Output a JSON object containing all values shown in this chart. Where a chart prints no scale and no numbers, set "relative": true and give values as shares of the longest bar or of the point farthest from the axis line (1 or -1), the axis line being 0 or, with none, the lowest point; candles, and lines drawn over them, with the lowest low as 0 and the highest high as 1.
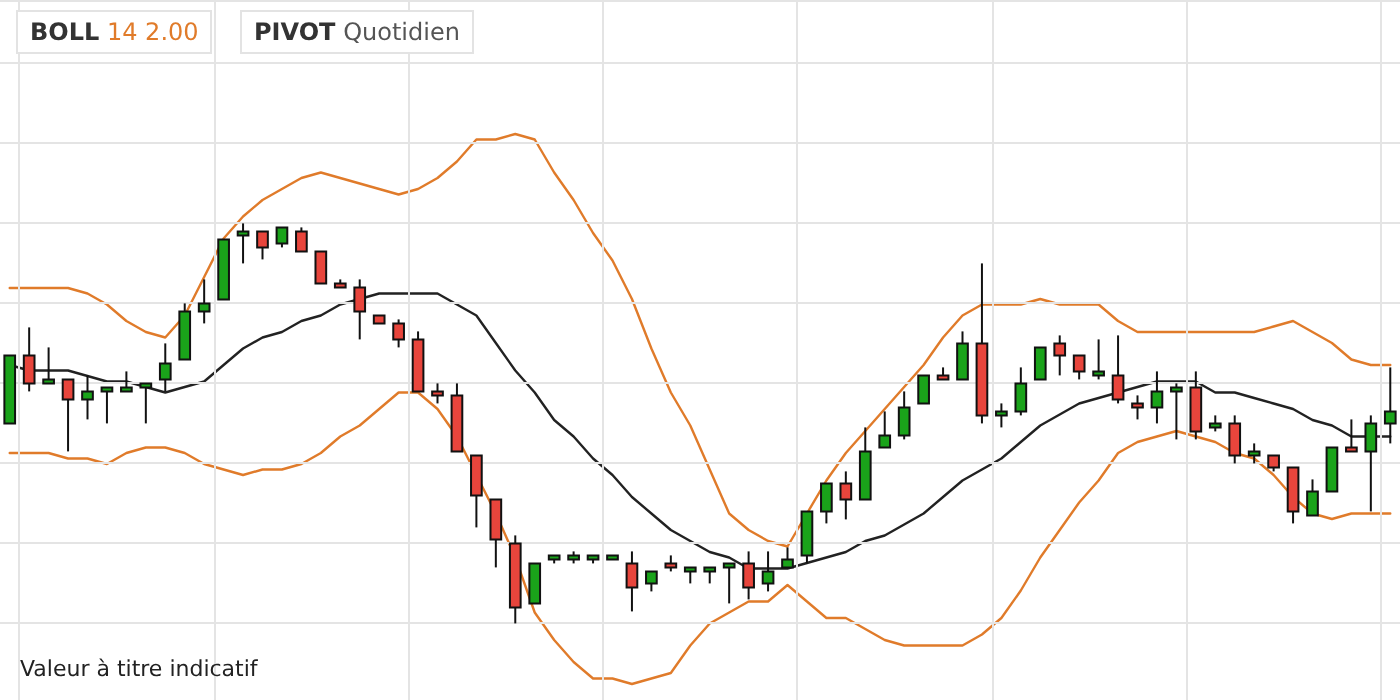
{
  "chart_data": [
    {
      "type": "candlestick",
      "relative": true,
      "grid": true,
      "categories": [
        null,
        null,
        null,
        null,
        null,
        null,
        null,
        null,
        null,
        null,
        null,
        null,
        null,
        null,
        null,
        null,
        null,
        null,
        null,
        null,
        null,
        null,
        null,
        null,
        null,
        null,
        null,
        null,
        null,
        null,
        null,
        null,
        null,
        null,
        null,
        null,
        null,
        null,
        null,
        null,
        null,
        null,
        null,
        null,
        null,
        null,
        null,
        null,
        null,
        null,
        null,
        null,
        null,
        null,
        null,
        null,
        null,
        null,
        null,
        null,
        null,
        null,
        null,
        null,
        null,
        null,
        null,
        null,
        null,
        null,
        null,
        null
      ],
      "ohlc": [
        [
          0.5,
          0.67,
          0.5,
          0.67
        ],
        [
          0.67,
          0.74,
          0.58,
          0.6
        ],
        [
          0.6,
          0.69,
          0.6,
          0.61
        ],
        [
          0.61,
          0.61,
          0.43,
          0.56
        ],
        [
          0.56,
          0.62,
          0.51,
          0.58
        ],
        [
          0.58,
          0.59,
          0.5,
          0.59
        ],
        [
          0.58,
          0.63,
          0.58,
          0.59
        ],
        [
          0.59,
          0.6,
          0.5,
          0.6
        ],
        [
          0.61,
          0.7,
          0.58,
          0.65
        ],
        [
          0.66,
          0.8,
          0.66,
          0.78
        ],
        [
          0.78,
          0.86,
          0.75,
          0.8
        ],
        [
          0.81,
          0.96,
          0.81,
          0.96
        ],
        [
          0.97,
          1.0,
          0.9,
          0.98
        ],
        [
          0.98,
          0.98,
          0.91,
          0.94
        ],
        [
          0.95,
          0.99,
          0.94,
          0.99
        ],
        [
          0.98,
          0.99,
          0.93,
          0.93
        ],
        [
          0.93,
          0.93,
          0.85,
          0.85
        ],
        [
          0.85,
          0.86,
          0.84,
          0.84
        ],
        [
          0.84,
          0.86,
          0.71,
          0.78
        ],
        [
          0.77,
          0.77,
          0.75,
          0.75
        ],
        [
          0.75,
          0.76,
          0.69,
          0.71
        ],
        [
          0.71,
          0.73,
          0.58,
          0.58
        ],
        [
          0.58,
          0.6,
          0.55,
          0.57
        ],
        [
          0.57,
          0.6,
          0.43,
          0.43
        ],
        [
          0.42,
          0.42,
          0.24,
          0.32
        ],
        [
          0.31,
          0.31,
          0.14,
          0.21
        ],
        [
          0.2,
          0.22,
          0.0,
          0.04
        ],
        [
          0.05,
          0.15,
          0.05,
          0.15
        ],
        [
          0.16,
          0.17,
          0.15,
          0.17
        ],
        [
          0.16,
          0.18,
          0.15,
          0.17
        ],
        [
          0.16,
          0.17,
          0.15,
          0.17
        ],
        [
          0.16,
          0.17,
          0.16,
          0.17
        ],
        [
          0.15,
          0.18,
          0.03,
          0.09
        ],
        [
          0.1,
          0.13,
          0.08,
          0.13
        ],
        [
          0.15,
          0.17,
          0.13,
          0.14
        ],
        [
          0.13,
          0.14,
          0.1,
          0.14
        ],
        [
          0.13,
          0.14,
          0.1,
          0.14
        ],
        [
          0.14,
          0.15,
          0.05,
          0.15
        ],
        [
          0.15,
          0.18,
          0.06,
          0.09
        ],
        [
          0.1,
          0.18,
          0.08,
          0.13
        ],
        [
          0.14,
          0.19,
          0.14,
          0.16
        ],
        [
          0.17,
          0.28,
          0.15,
          0.28
        ],
        [
          0.28,
          0.35,
          0.25,
          0.35
        ],
        [
          0.35,
          0.38,
          0.26,
          0.31
        ],
        [
          0.31,
          0.49,
          0.31,
          0.43
        ],
        [
          0.44,
          0.53,
          0.44,
          0.47
        ],
        [
          0.47,
          0.58,
          0.46,
          0.54
        ],
        [
          0.55,
          0.62,
          0.55,
          0.62
        ],
        [
          0.62,
          0.64,
          0.61,
          0.61
        ],
        [
          0.61,
          0.73,
          0.61,
          0.7
        ],
        [
          0.7,
          0.9,
          0.5,
          0.52
        ],
        [
          0.52,
          0.55,
          0.49,
          0.53
        ],
        [
          0.53,
          0.64,
          0.52,
          0.6
        ],
        [
          0.61,
          0.69,
          0.61,
          0.69
        ],
        [
          0.7,
          0.72,
          0.62,
          0.67
        ],
        [
          0.67,
          0.67,
          0.61,
          0.63
        ],
        [
          0.62,
          0.71,
          0.61,
          0.63
        ],
        [
          0.62,
          0.72,
          0.55,
          0.56
        ],
        [
          0.55,
          0.57,
          0.51,
          0.54
        ],
        [
          0.54,
          0.63,
          0.5,
          0.58
        ],
        [
          0.58,
          0.6,
          0.46,
          0.59
        ],
        [
          0.59,
          0.63,
          0.46,
          0.48
        ],
        [
          0.49,
          0.52,
          0.48,
          0.5
        ],
        [
          0.5,
          0.52,
          0.4,
          0.42
        ],
        [
          0.42,
          0.45,
          0.4,
          0.43
        ],
        [
          0.42,
          0.42,
          0.38,
          0.39
        ],
        [
          0.39,
          0.39,
          0.25,
          0.28
        ],
        [
          0.27,
          0.36,
          0.27,
          0.33
        ],
        [
          0.33,
          0.44,
          0.33,
          0.44
        ],
        [
          0.44,
          0.51,
          0.43,
          0.43
        ],
        [
          0.43,
          0.52,
          0.28,
          0.5
        ],
        [
          0.5,
          0.64,
          0.45,
          0.53
        ]
      ],
      "colors": [
        "#1aa31a",
        "#e8453c",
        "#1aa31a",
        "#e8453c",
        "#1aa31a",
        "#1aa31a",
        "#1aa31a",
        "#1aa31a",
        "#1aa31a",
        "#1aa31a",
        "#1aa31a",
        "#1aa31a",
        "#1aa31a",
        "#e8453c",
        "#1aa31a",
        "#e8453c",
        "#e8453c",
        "#e8453c",
        "#e8453c",
        "#e8453c",
        "#e8453c",
        "#e8453c",
        "#e8453c",
        "#e8453c",
        "#e8453c",
        "#e8453c",
        "#e8453c",
        "#1aa31a",
        "#1aa31a",
        "#1aa31a",
        "#1aa31a",
        "#1aa31a",
        "#e8453c",
        "#1aa31a",
        "#e8453c",
        "#1aa31a",
        "#1aa31a",
        "#1aa31a",
        "#e8453c",
        "#1aa31a",
        "#1aa31a",
        "#1aa31a",
        "#1aa31a",
        "#e8453c",
        "#1aa31a",
        "#1aa31a",
        "#1aa31a",
        "#1aa31a",
        "#e8453c",
        "#1aa31a",
        "#e8453c",
        "#1aa31a",
        "#1aa31a",
        "#1aa31a",
        "#e8453c",
        "#e8453c",
        "#1aa31a",
        "#e8453c",
        "#e8453c",
        "#1aa31a",
        "#1aa31a",
        "#e8453c",
        "#1aa31a",
        "#e8453c",
        "#1aa31a",
        "#e8453c",
        "#e8453c",
        "#1aa31a",
        "#1aa31a",
        "#e8453c",
        "#1aa31a",
        "#1aa31a"
      ],
      "annotations": [
        "BOLL 14 2.00",
        "PIVOT Quotidien",
        "Valeur à titre indicatif"
      ]
    },
    {
      "type": "line",
      "relative": true,
      "categories": [
        null,
        null,
        null,
        null,
        null,
        null,
        null,
        null,
        null,
        null,
        null,
        null,
        null,
        null,
        null,
        null,
        null,
        null,
        null,
        null,
        null,
        null,
        null,
        null,
        null,
        null,
        null,
        null,
        null,
        null,
        null,
        null,
        null,
        null,
        null,
        null,
        null,
        null,
        null,
        null,
        null,
        null,
        null,
        null,
        null,
        null,
        null,
        null,
        null,
        null,
        null,
        null,
        null,
        null,
        null,
        null,
        null,
        null,
        null,
        null,
        null,
        null,
        null,
        null,
        null,
        null,
        null,
        null,
        null,
        null,
        null,
        null
      ],
      "series": [
        {
          "color": "#e07b2a",
          "values": [
            0.72,
            0.72,
            0.72,
            0.72,
            0.71,
            0.69,
            0.66,
            0.64,
            0.63,
            0.67,
            0.74,
            0.81,
            0.85,
            0.88,
            0.9,
            0.92,
            0.93,
            0.92,
            0.91,
            0.9,
            0.89,
            0.9,
            0.92,
            0.95,
            0.99,
            0.99,
            1.0,
            0.99,
            0.93,
            0.88,
            0.82,
            0.77,
            0.7,
            0.61,
            0.53,
            0.47,
            0.39,
            0.31,
            0.28,
            0.26,
            0.25,
            0.31,
            0.37,
            0.42,
            0.46,
            0.5,
            0.54,
            0.58,
            0.63,
            0.67,
            0.69,
            0.69,
            0.69,
            0.7,
            0.69,
            0.69,
            0.69,
            0.66,
            0.64,
            0.64,
            0.64,
            0.64,
            0.64,
            0.64,
            0.64,
            0.65,
            0.66,
            0.64,
            0.62,
            0.59,
            0.58,
            0.58
          ]
        },
        {
          "color": "#222222",
          "values": [
            0.58,
            0.57,
            0.57,
            0.57,
            0.56,
            0.55,
            0.55,
            0.54,
            0.53,
            0.54,
            0.55,
            0.58,
            0.61,
            0.63,
            0.64,
            0.66,
            0.67,
            0.69,
            0.7,
            0.71,
            0.71,
            0.71,
            0.71,
            0.69,
            0.67,
            0.62,
            0.57,
            0.53,
            0.48,
            0.45,
            0.41,
            0.38,
            0.34,
            0.31,
            0.28,
            0.26,
            0.24,
            0.23,
            0.21,
            0.21,
            0.21,
            0.22,
            0.23,
            0.24,
            0.26,
            0.27,
            0.29,
            0.31,
            0.34,
            0.37,
            0.39,
            0.41,
            0.44,
            0.47,
            0.49,
            0.51,
            0.52,
            0.53,
            0.54,
            0.55,
            0.55,
            0.55,
            0.53,
            0.53,
            0.52,
            0.51,
            0.5,
            0.48,
            0.47,
            0.45,
            0.45,
            0.45
          ]
        },
        {
          "color": "#e07b2a",
          "values": [
            0.42,
            0.42,
            0.42,
            0.41,
            0.41,
            0.4,
            0.42,
            0.43,
            0.43,
            0.42,
            0.4,
            0.39,
            0.38,
            0.39,
            0.39,
            0.4,
            0.42,
            0.45,
            0.47,
            0.5,
            0.53,
            0.53,
            0.5,
            0.45,
            0.38,
            0.31,
            0.23,
            0.13,
            0.08,
            0.04,
            0.01,
            0.01,
            0.0,
            0.01,
            0.02,
            0.07,
            0.11,
            0.13,
            0.15,
            0.15,
            0.18,
            0.15,
            0.12,
            0.12,
            0.1,
            0.08,
            0.07,
            0.07,
            0.07,
            0.07,
            0.09,
            0.12,
            0.17,
            0.23,
            0.28,
            0.33,
            0.37,
            0.42,
            0.44,
            0.45,
            0.46,
            0.45,
            0.44,
            0.42,
            0.41,
            0.38,
            0.34,
            0.31,
            0.3,
            0.31,
            0.31,
            0.31
          ]
        }
      ]
    }
  ]
}
